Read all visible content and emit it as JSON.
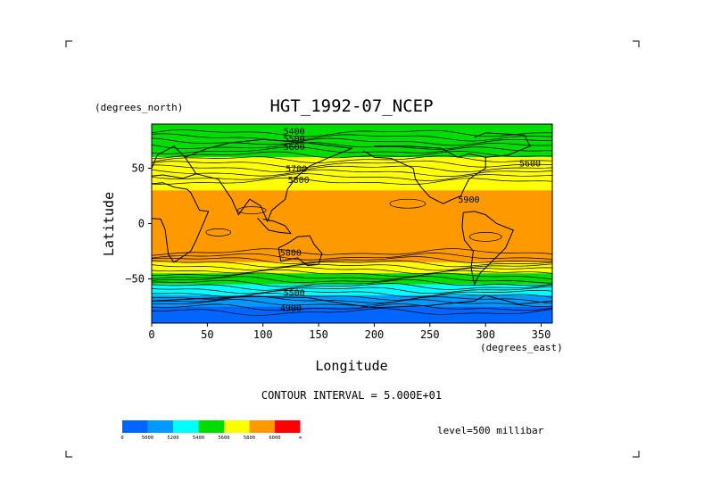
{
  "chart_data": {
    "type": "heatmap",
    "title": "HGT_1992-07_NCEP",
    "xlabel": "Longitude",
    "ylabel": "Latitude",
    "x_units": "(degrees_east)",
    "y_units": "(degrees_north)",
    "xlim": [
      0,
      360
    ],
    "ylim": [
      -90,
      90
    ],
    "x_ticks": [
      0,
      50,
      100,
      150,
      200,
      250,
      300,
      350
    ],
    "y_ticks": [
      50,
      0,
      -50
    ],
    "contour_interval_text": "CONTOUR INTERVAL = 5.000E+01",
    "level_text": "level=500 millibar",
    "contour_labels": [
      {
        "text": "5400",
        "lon": 128,
        "lat": 84
      },
      {
        "text": "5500",
        "lon": 128,
        "lat": 77
      },
      {
        "text": "5600",
        "lon": 128,
        "lat": 70
      },
      {
        "text": "5700",
        "lon": 130,
        "lat": 50
      },
      {
        "text": "5800",
        "lon": 132,
        "lat": 40
      },
      {
        "text": "5900",
        "lon": 285,
        "lat": 22
      },
      {
        "text": "5600",
        "lon": 340,
        "lat": 55
      },
      {
        "text": "5800",
        "lon": 125,
        "lat": -26
      },
      {
        "text": "5500",
        "lon": 128,
        "lat": -62
      },
      {
        "text": "4900",
        "lon": 125,
        "lat": -76
      }
    ],
    "bands": [
      {
        "band": "<5000",
        "color": "#0066ff"
      },
      {
        "band": "5000-5200",
        "color": "#0099ff"
      },
      {
        "band": "5200-5400",
        "color": "#00ffff"
      },
      {
        "band": "5400-5600",
        "color": "#00dd00"
      },
      {
        "band": "5600-5800",
        "color": "#ffff00"
      },
      {
        "band": "5800-6000",
        "color": "#ff9900"
      },
      {
        "band": ">6000",
        "color": "#ff0000"
      }
    ],
    "latitude_profile": [
      {
        "lat": 90,
        "band": 3
      },
      {
        "lat": 75,
        "band": 3
      },
      {
        "lat": 60,
        "band": 4
      },
      {
        "lat": 45,
        "band": 4
      },
      {
        "lat": 30,
        "band": 5
      },
      {
        "lat": 0,
        "band": 5
      },
      {
        "lat": -25,
        "band": 5
      },
      {
        "lat": -35,
        "band": 4
      },
      {
        "lat": -45,
        "band": 3
      },
      {
        "lat": -55,
        "band": 2
      },
      {
        "lat": -65,
        "band": 1
      },
      {
        "lat": -75,
        "band": 0
      },
      {
        "lat": -90,
        "band": 0
      }
    ]
  },
  "colorbar": {
    "colors": [
      "#0066ff",
      "#0099ff",
      "#00ffff",
      "#00dd00",
      "#ffff00",
      "#ff9900",
      "#ff0000"
    ],
    "tick_labels": [
      "0",
      "5000",
      "5200",
      "5400",
      "5600",
      "5800",
      "6000",
      "∞"
    ]
  }
}
